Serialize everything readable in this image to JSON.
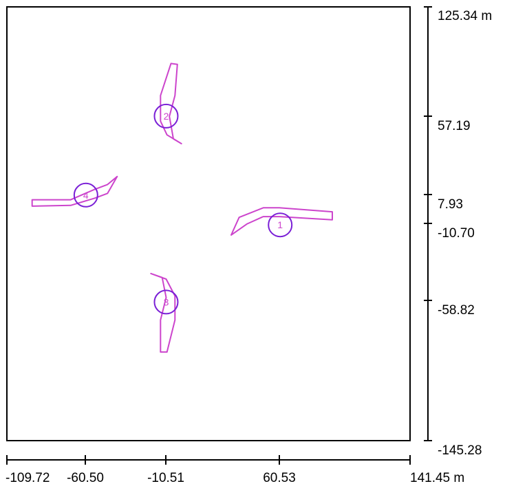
{
  "colors": {
    "background": "#ffffff",
    "frame": "#000000",
    "blade": "#cc44cc",
    "marker": "#7a1fd6"
  },
  "x_axis": {
    "ticks": [
      "-109.72",
      "-60.50",
      "-10.51",
      "60.53"
    ],
    "end_label": "141.45 m",
    "range": [
      -109.72,
      141.45
    ]
  },
  "y_axis": {
    "top_label": "125.34 m",
    "ticks": [
      "57.19",
      "7.93",
      "-10.70",
      "-58.82"
    ],
    "bottom_label": "-145.28",
    "range": [
      -145.28,
      125.34
    ]
  },
  "markers": [
    {
      "id": "1",
      "x": 60.53,
      "y": -10.7
    },
    {
      "id": "2",
      "x": -10.51,
      "y": 57.19
    },
    {
      "id": "3",
      "x": -10.51,
      "y": -58.82
    },
    {
      "id": "4",
      "x": -60.5,
      "y": 7.93
    }
  ],
  "blades": [
    {
      "marker": "1",
      "points": [
        [
          93,
          -7.5
        ],
        [
          93,
          -2.5
        ],
        [
          60,
          0
        ],
        [
          50,
          0
        ],
        [
          35,
          -6
        ],
        [
          30,
          -17
        ],
        [
          40,
          -10
        ],
        [
          50,
          -5.5
        ],
        [
          60,
          -5.5
        ]
      ]
    },
    {
      "marker": "2",
      "points": [
        [
          -7.5,
          90
        ],
        [
          -3.5,
          89.5
        ],
        [
          -5,
          70
        ],
        [
          -8.5,
          57
        ],
        [
          -6,
          43
        ],
        [
          -1,
          40
        ],
        [
          -10,
          45.5
        ],
        [
          -14,
          54
        ],
        [
          -14,
          70
        ]
      ]
    },
    {
      "marker": "3",
      "points": [
        [
          -10,
          -90
        ],
        [
          -14,
          -90
        ],
        [
          -14,
          -70
        ],
        [
          -10.5,
          -56
        ],
        [
          -13,
          -43.5
        ],
        [
          -20,
          -41
        ],
        [
          -10.5,
          -44.5
        ],
        [
          -5,
          -55
        ],
        [
          -5,
          -70
        ]
      ]
    },
    {
      "marker": "4",
      "points": [
        [
          -94,
          5
        ],
        [
          -94,
          1
        ],
        [
          -70,
          1.5
        ],
        [
          -55,
          6
        ],
        [
          -47,
          9
        ],
        [
          -41,
          19.5
        ],
        [
          -47,
          14.5
        ],
        [
          -55,
          11.5
        ],
        [
          -70,
          5
        ]
      ]
    }
  ]
}
